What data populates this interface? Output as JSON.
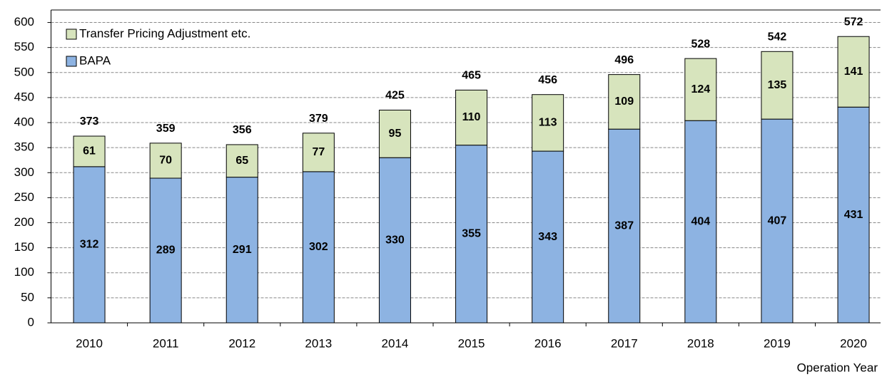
{
  "chart_data": {
    "type": "stacked_bar",
    "x_label": "Operation Year",
    "categories": [
      "2010",
      "2011",
      "2012",
      "2013",
      "2014",
      "2015",
      "2016",
      "2017",
      "2018",
      "2019",
      "2020"
    ],
    "series": [
      {
        "name": "BAPA",
        "color": "#8db3e2",
        "values": [
          312,
          289,
          291,
          302,
          330,
          355,
          343,
          387,
          404,
          407,
          431
        ]
      },
      {
        "name": "Transfer Pricing Adjustment etc.",
        "color": "#d7e4bd",
        "values": [
          61,
          70,
          65,
          77,
          95,
          110,
          113,
          109,
          124,
          135,
          141
        ]
      }
    ],
    "totals": [
      373,
      359,
      356,
      379,
      425,
      465,
      456,
      496,
      528,
      542,
      572
    ],
    "ylim": [
      0,
      625
    ],
    "yticks": [
      0,
      50,
      100,
      150,
      200,
      250,
      300,
      350,
      400,
      450,
      500,
      550,
      600
    ],
    "grid": true
  }
}
